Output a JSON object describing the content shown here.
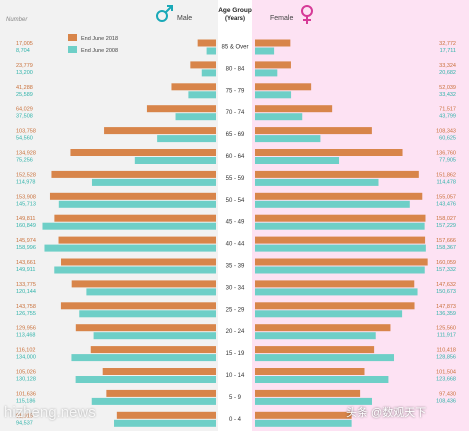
{
  "chart_data": {
    "type": "bar",
    "orientation": "horizontal",
    "layout": "population-pyramid",
    "corner_label": "Number",
    "axis_title": "Age Group",
    "axis_subtitle": "(Years)",
    "left_label": "Male",
    "right_label": "Female",
    "legend": {
      "placement": "top-left",
      "items": [
        {
          "label": "End June 2018",
          "color": "#d8854a"
        },
        {
          "label": "End June 2008",
          "color": "#6ecfc7"
        }
      ]
    },
    "categories": [
      "85 & Over",
      "80 - 84",
      "75 - 79",
      "70 - 74",
      "65 - 69",
      "60 - 64",
      "55 - 59",
      "50 - 54",
      "45 - 49",
      "40 - 44",
      "35 - 39",
      "30 - 34",
      "25 - 29",
      "20 - 24",
      "15 - 19",
      "10 - 14",
      "5 - 9",
      "0 - 4"
    ],
    "male": {
      "2018": [
        17005,
        23779,
        41288,
        64029,
        103758,
        134928,
        152528,
        153908,
        149811,
        145974,
        143661,
        133775,
        143758,
        129956,
        116102,
        105026,
        101636,
        91916
      ],
      "2008": [
        8704,
        13200,
        25589,
        37508,
        54560,
        75256,
        114978,
        145713,
        160849,
        158996,
        149911,
        120144,
        126755,
        113468,
        134000,
        130128,
        115186,
        94537
      ],
      "labels_2018": [
        "17,005",
        "23,779",
        "41,288",
        "64,029",
        "103,758",
        "134,928",
        "152,528",
        "153,908",
        "149,811",
        "145,974",
        "143,661",
        "133,775",
        "143,758",
        "129,956",
        "116,102",
        "105,026",
        "101,636",
        "91,916"
      ],
      "labels_2008": [
        "8,704",
        "13,200",
        "25,589",
        "37,508",
        "54,560",
        "75,256",
        "114,978",
        "145,713",
        "160,849",
        "158,996",
        "149,911",
        "120,144",
        "126,755",
        "113,468",
        "134,000",
        "130,128",
        "115,186",
        "94,537"
      ]
    },
    "female": {
      "2018": [
        32772,
        33324,
        52039,
        71517,
        108343,
        136760,
        151862,
        155057,
        158027,
        157666,
        160059,
        147632,
        147873,
        125560,
        110418,
        101504,
        97430,
        89566
      ],
      "2008": [
        17711,
        20682,
        33432,
        43799,
        60625,
        77905,
        114478,
        143476,
        157229,
        158367,
        157332,
        150673,
        136359,
        111917,
        128856,
        123668,
        108436,
        89566
      ],
      "labels_2018": [
        "32,772",
        "33,324",
        "52,039",
        "71,517",
        "108,343",
        "136,760",
        "151,862",
        "155,057",
        "158,027",
        "157,666",
        "160,059",
        "147,632",
        "147,873",
        "125,560",
        "110,418",
        "101,504",
        "97,430",
        ""
      ],
      "labels_2008": [
        "17,711",
        "20,682",
        "33,432",
        "43,799",
        "60,625",
        "77,905",
        "114,478",
        "143,476",
        "157,229",
        "158,367",
        "157,332",
        "150,673",
        "136,359",
        "111,917",
        "128,856",
        "123,668",
        "108,436",
        ""
      ]
    },
    "xlim": [
      0,
      165000
    ],
    "grid": false
  },
  "watermarks": {
    "bottom_left": "hizheng.news",
    "bottom_right": "头条 @数观天下"
  },
  "colors": {
    "male_2018": "#d8854a",
    "male_2008": "#6ecfc7",
    "female_bg": "#fde2f3",
    "male_bg": "#f2f2f2",
    "male_symbol": "#1aa9b8",
    "female_symbol": "#d63a97",
    "label_orange": "#c9703a",
    "label_teal": "#2fb3aa"
  }
}
